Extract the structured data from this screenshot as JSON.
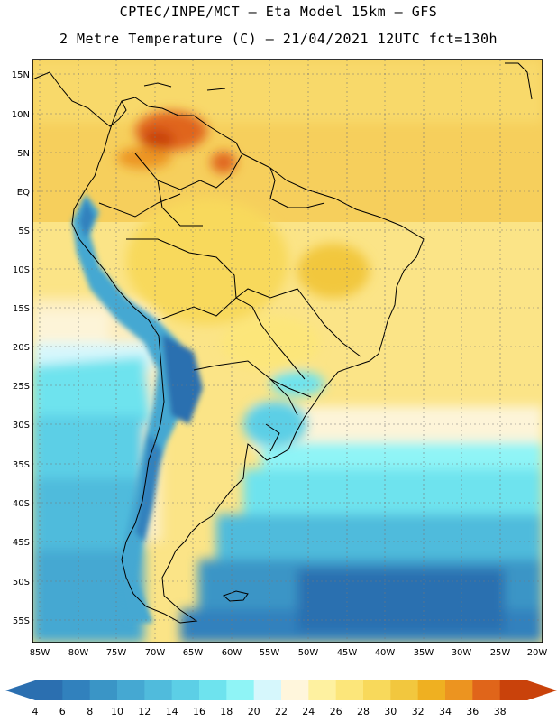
{
  "header": {
    "line1": "CPTEC/INPE/MCT –  Eta Model 15km – GFS",
    "line2": "2 Metre Temperature (C) – 21/04/2021 12UTC fct=130h"
  },
  "map": {
    "lat_labels": [
      "15N",
      "10N",
      "5N",
      "EQ",
      "5S",
      "10S",
      "15S",
      "20S",
      "25S",
      "30S",
      "35S",
      "40S",
      "45S",
      "50S",
      "55S"
    ],
    "lon_labels": [
      "85W",
      "80W",
      "75W",
      "70W",
      "65W",
      "60W",
      "55W",
      "50W",
      "45W",
      "40W",
      "35W",
      "30W",
      "25W",
      "20W"
    ]
  },
  "colorbar": {
    "labels": [
      "4",
      "6",
      "8",
      "10",
      "12",
      "14",
      "16",
      "18",
      "20",
      "22",
      "24",
      "26",
      "28",
      "30",
      "32",
      "34",
      "36",
      "38"
    ],
    "colors": [
      "#2b6fb0",
      "#3181bd",
      "#3a95c6",
      "#45a8d2",
      "#50bbdc",
      "#5ccfe6",
      "#6ee3ee",
      "#8ff4f6",
      "#d6f7fc",
      "#fff6dc",
      "#fef1a0",
      "#fce67a",
      "#f8d95b",
      "#f2c73e",
      "#efb021",
      "#ec9420",
      "#e0651a",
      "#c9420b"
    ]
  }
}
